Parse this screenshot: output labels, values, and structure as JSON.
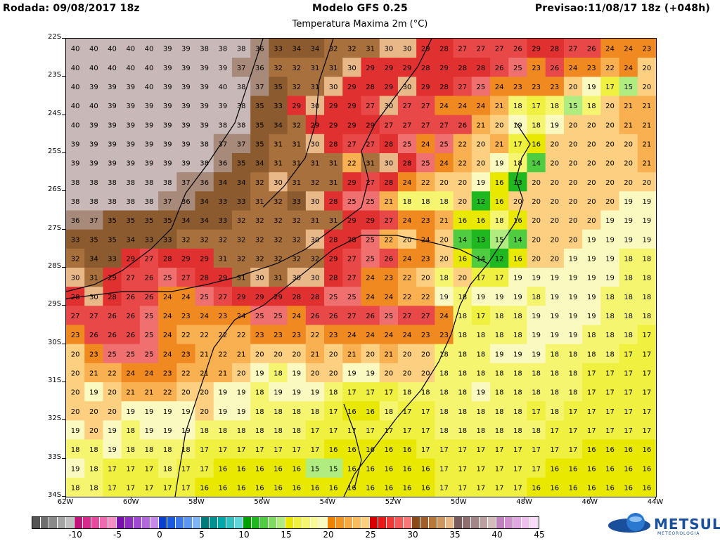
{
  "header": {
    "run": "Rodada: 09/08/2017 18z",
    "model": "Modelo GFS 0.25",
    "forecast": "Previsao:11/08/17 18z (+048h)",
    "variable": "Temperatura Maxima 2m (°C)"
  },
  "map": {
    "lat_labels": [
      "22S",
      "23S",
      "24S",
      "25S",
      "26S",
      "27S",
      "28S",
      "29S",
      "30S",
      "31S",
      "32S",
      "33S",
      "34S"
    ],
    "lon_labels": [
      "62W",
      "60W",
      "58W",
      "56W",
      "54W",
      "52W",
      "50W",
      "48W",
      "46W",
      "44W"
    ],
    "grid_values": [
      [
        40,
        40,
        40,
        40,
        40,
        39,
        39,
        38,
        38,
        38,
        36,
        33,
        34,
        34,
        32,
        32,
        31,
        30,
        30,
        29,
        28,
        27,
        27,
        27,
        26,
        29,
        28,
        27,
        26,
        24,
        24,
        23
      ],
      [
        40,
        40,
        40,
        40,
        40,
        39,
        39,
        39,
        39,
        37,
        36,
        32,
        32,
        31,
        31,
        30,
        29,
        29,
        29,
        28,
        29,
        28,
        28,
        26,
        25,
        23,
        26,
        24,
        23,
        22,
        24,
        20
      ],
      [
        40,
        39,
        39,
        39,
        40,
        39,
        39,
        39,
        40,
        38,
        37,
        35,
        32,
        31,
        30,
        29,
        28,
        29,
        30,
        29,
        28,
        27,
        25,
        24,
        23,
        23,
        23,
        20,
        19,
        17,
        15,
        20
      ],
      [
        40,
        40,
        39,
        39,
        39,
        39,
        39,
        39,
        39,
        38,
        35,
        33,
        29,
        30,
        29,
        29,
        27,
        30,
        27,
        27,
        24,
        24,
        24,
        21,
        18,
        17,
        18,
        15,
        18,
        20,
        21,
        21
      ],
      [
        40,
        39,
        39,
        39,
        39,
        39,
        39,
        39,
        38,
        38,
        35,
        34,
        32,
        29,
        29,
        29,
        29,
        27,
        27,
        27,
        27,
        26,
        21,
        20,
        19,
        18,
        19,
        20,
        20,
        20,
        21,
        21
      ],
      [
        39,
        39,
        39,
        39,
        39,
        39,
        39,
        38,
        37,
        37,
        35,
        31,
        31,
        30,
        28,
        27,
        27,
        28,
        25,
        24,
        25,
        22,
        20,
        21,
        17,
        16,
        20,
        20,
        20,
        20,
        20,
        21
      ],
      [
        39,
        39,
        39,
        39,
        39,
        39,
        39,
        38,
        36,
        35,
        34,
        31,
        31,
        31,
        31,
        22,
        31,
        30,
        28,
        25,
        24,
        22,
        20,
        19,
        18,
        14,
        20,
        20,
        20,
        20,
        20,
        21
      ],
      [
        38,
        38,
        38,
        38,
        38,
        38,
        37,
        36,
        34,
        34,
        32,
        30,
        31,
        32,
        31,
        29,
        27,
        28,
        24,
        22,
        20,
        20,
        19,
        16,
        13,
        20,
        20,
        20,
        20,
        20,
        20,
        20
      ],
      [
        38,
        38,
        38,
        38,
        38,
        37,
        36,
        34,
        33,
        33,
        31,
        32,
        33,
        30,
        28,
        25,
        25,
        21,
        18,
        18,
        18,
        20,
        12,
        16,
        20,
        20,
        20,
        20,
        20,
        20,
        19,
        19
      ],
      [
        36,
        37,
        35,
        35,
        35,
        35,
        34,
        34,
        33,
        32,
        32,
        32,
        32,
        31,
        31,
        29,
        29,
        27,
        24,
        23,
        21,
        16,
        16,
        18,
        16,
        20,
        20,
        20,
        20,
        19,
        19,
        19
      ],
      [
        33,
        35,
        35,
        34,
        33,
        33,
        32,
        32,
        32,
        32,
        32,
        32,
        32,
        30,
        28,
        28,
        25,
        22,
        20,
        24,
        20,
        14,
        13,
        15,
        14,
        20,
        20,
        20,
        19,
        19,
        19,
        19
      ],
      [
        32,
        34,
        33,
        29,
        27,
        28,
        29,
        29,
        31,
        32,
        32,
        32,
        32,
        32,
        29,
        27,
        25,
        26,
        24,
        23,
        20,
        16,
        14,
        12,
        16,
        20,
        20,
        19,
        19,
        19,
        18,
        18
      ],
      [
        30,
        31,
        29,
        27,
        26,
        25,
        27,
        28,
        29,
        31,
        30,
        31,
        30,
        30,
        28,
        27,
        24,
        23,
        22,
        20,
        18,
        20,
        17,
        17,
        19,
        19,
        19,
        19,
        19,
        19,
        18,
        18
      ],
      [
        28,
        30,
        28,
        26,
        26,
        24,
        24,
        25,
        27,
        29,
        29,
        29,
        28,
        28,
        25,
        25,
        24,
        24,
        22,
        22,
        19,
        18,
        19,
        19,
        19,
        18,
        19,
        19,
        19,
        18,
        18,
        18
      ],
      [
        27,
        27,
        26,
        26,
        25,
        24,
        23,
        24,
        23,
        24,
        25,
        25,
        24,
        26,
        26,
        27,
        26,
        25,
        27,
        27,
        24,
        18,
        17,
        18,
        18,
        19,
        19,
        19,
        19,
        18,
        18,
        18
      ],
      [
        23,
        26,
        26,
        26,
        25,
        24,
        22,
        22,
        22,
        22,
        23,
        23,
        23,
        22,
        23,
        24,
        24,
        24,
        24,
        23,
        23,
        18,
        18,
        18,
        18,
        19,
        19,
        19,
        18,
        18,
        18,
        17
      ],
      [
        20,
        23,
        25,
        25,
        25,
        24,
        23,
        21,
        22,
        21,
        20,
        20,
        20,
        21,
        20,
        21,
        20,
        21,
        20,
        20,
        18,
        18,
        18,
        19,
        19,
        19,
        18,
        18,
        18,
        18,
        17,
        17
      ],
      [
        20,
        21,
        22,
        24,
        24,
        23,
        22,
        21,
        21,
        20,
        19,
        18,
        19,
        20,
        20,
        19,
        19,
        20,
        20,
        20,
        18,
        18,
        18,
        18,
        18,
        18,
        18,
        18,
        17,
        17,
        17,
        17
      ],
      [
        20,
        19,
        20,
        21,
        21,
        22,
        20,
        20,
        19,
        19,
        18,
        19,
        19,
        19,
        18,
        17,
        17,
        17,
        18,
        18,
        18,
        18,
        19,
        18,
        18,
        18,
        18,
        18,
        17,
        17,
        17,
        17
      ],
      [
        20,
        20,
        20,
        19,
        19,
        19,
        19,
        20,
        19,
        19,
        18,
        18,
        18,
        18,
        17,
        16,
        16,
        18,
        17,
        17,
        18,
        18,
        18,
        18,
        18,
        17,
        18,
        17,
        17,
        17,
        17,
        17
      ],
      [
        19,
        20,
        19,
        18,
        19,
        19,
        19,
        18,
        18,
        18,
        18,
        18,
        18,
        17,
        17,
        17,
        17,
        17,
        17,
        17,
        18,
        18,
        18,
        18,
        18,
        18,
        17,
        17,
        17,
        17,
        17,
        17
      ],
      [
        18,
        18,
        19,
        18,
        18,
        18,
        18,
        17,
        17,
        17,
        17,
        17,
        17,
        17,
        16,
        16,
        16,
        16,
        16,
        17,
        17,
        17,
        17,
        17,
        17,
        17,
        17,
        17,
        16,
        16,
        16,
        16
      ],
      [
        19,
        18,
        17,
        17,
        17,
        18,
        17,
        17,
        16,
        16,
        16,
        16,
        16,
        15,
        15,
        16,
        16,
        16,
        16,
        16,
        17,
        17,
        17,
        17,
        17,
        17,
        16,
        16,
        16,
        16,
        16,
        16
      ],
      [
        18,
        18,
        17,
        17,
        17,
        17,
        17,
        16,
        16,
        16,
        16,
        16,
        16,
        16,
        16,
        16,
        16,
        16,
        16,
        16,
        17,
        17,
        17,
        17,
        17,
        16,
        16,
        16,
        16,
        16,
        16,
        16
      ]
    ]
  },
  "colorbar": {
    "labels": [
      "-10",
      "-5",
      "0",
      "5",
      "10",
      "15",
      "20",
      "25",
      "30",
      "35",
      "40",
      "45"
    ],
    "colors": [
      "#555555",
      "#707070",
      "#8a8a8a",
      "#a5a5a5",
      "#c0c0c0",
      "#c0147a",
      "#d82a8a",
      "#e84a9e",
      "#f06ab2",
      "#f58cc6",
      "#7a0fb0",
      "#8d2bc2",
      "#a048d2",
      "#b468de",
      "#c48ae8",
      "#0d3fd0",
      "#1a5ae0",
      "#3a78ea",
      "#5c96f0",
      "#80b4f5",
      "#007a7a",
      "#009090",
      "#00a8a8",
      "#30c0c0",
      "#60d8d8",
      "#00a000",
      "#20b820",
      "#50cc40",
      "#80dc60",
      "#b0ec80",
      "#e8e800",
      "#f0f040",
      "#f5f570",
      "#f8f898",
      "#fafac0",
      "#f08000",
      "#f49420",
      "#f8a840",
      "#fbbc60",
      "#fdd080",
      "#d80000",
      "#e81818",
      "#f03838",
      "#f55858",
      "#f87878",
      "#8b4a1a",
      "#a05e2a",
      "#b8783c",
      "#d09660",
      "#e8b888",
      "#7a5a5a",
      "#8e6e6e",
      "#a48686",
      "#bca0a0",
      "#d4bcbc",
      "#c080c0",
      "#d090d0",
      "#e0a8e0",
      "#eec0ee",
      "#f8dcf8"
    ]
  },
  "logo": {
    "name": "METSUL",
    "subtitle": "METEOROLOGIA"
  }
}
